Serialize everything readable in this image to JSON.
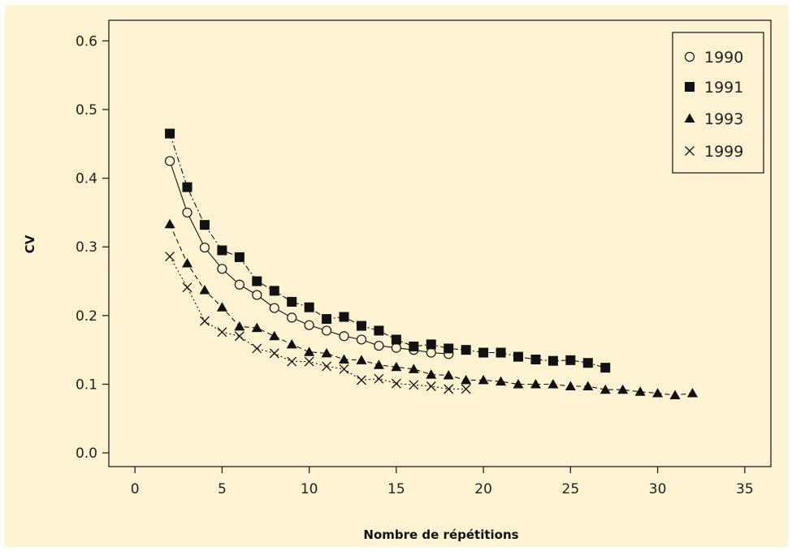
{
  "chart_data": {
    "type": "line",
    "xlabel": "Nombre de répétitions",
    "ylabel": "CV",
    "xlim": [
      -1.5,
      36.5
    ],
    "ylim": [
      -0.02,
      0.63
    ],
    "xticks": [
      0,
      5,
      10,
      15,
      20,
      25,
      30,
      35
    ],
    "yticks": [
      0.0,
      0.1,
      0.2,
      0.3,
      0.4,
      0.5,
      0.6
    ],
    "ytick_labels": [
      "0.0",
      "0.1",
      "0.2",
      "0.3",
      "0.4",
      "0.5",
      "0.6"
    ],
    "grid": false,
    "legend_position": "top-right",
    "series": [
      {
        "name": "1990",
        "marker": "open-circle",
        "line_style": "solid",
        "x": [
          2,
          3,
          4,
          5,
          6,
          7,
          8,
          9,
          10,
          11,
          12,
          13,
          14,
          15,
          16,
          17,
          18
        ],
        "y": [
          0.425,
          0.35,
          0.299,
          0.268,
          0.245,
          0.23,
          0.211,
          0.197,
          0.186,
          0.178,
          0.17,
          0.165,
          0.156,
          0.153,
          0.15,
          0.146,
          0.144
        ]
      },
      {
        "name": "1991",
        "marker": "filled-square",
        "line_style": "dash-dot",
        "x": [
          2,
          3,
          4,
          5,
          6,
          7,
          8,
          9,
          10,
          11,
          12,
          13,
          14,
          15,
          16,
          17,
          18,
          19,
          20,
          21,
          22,
          23,
          24,
          25,
          26,
          27
        ],
        "y": [
          0.465,
          0.387,
          0.332,
          0.295,
          0.285,
          0.25,
          0.236,
          0.22,
          0.212,
          0.195,
          0.198,
          0.185,
          0.178,
          0.165,
          0.155,
          0.158,
          0.152,
          0.15,
          0.146,
          0.146,
          0.14,
          0.136,
          0.134,
          0.135,
          0.131,
          0.124
        ]
      },
      {
        "name": "1993",
        "marker": "filled-triangle",
        "line_style": "dashed",
        "x": [
          2,
          3,
          4,
          5,
          6,
          7,
          8,
          9,
          10,
          11,
          12,
          13,
          14,
          15,
          16,
          17,
          18,
          19,
          20,
          21,
          22,
          23,
          24,
          25,
          26,
          27,
          28,
          29,
          30,
          31,
          32
        ],
        "y": [
          0.333,
          0.276,
          0.237,
          0.212,
          0.184,
          0.182,
          0.17,
          0.158,
          0.147,
          0.145,
          0.136,
          0.135,
          0.128,
          0.125,
          0.122,
          0.114,
          0.113,
          0.106,
          0.106,
          0.104,
          0.1,
          0.1,
          0.1,
          0.097,
          0.097,
          0.092,
          0.092,
          0.089,
          0.087,
          0.084,
          0.087
        ]
      },
      {
        "name": "1999",
        "marker": "cross",
        "line_style": "dotted",
        "x": [
          2,
          3,
          4,
          5,
          6,
          7,
          8,
          9,
          10,
          11,
          12,
          13,
          14,
          15,
          16,
          17,
          18,
          19
        ],
        "y": [
          0.286,
          0.241,
          0.192,
          0.176,
          0.17,
          0.152,
          0.145,
          0.133,
          0.133,
          0.126,
          0.122,
          0.106,
          0.108,
          0.101,
          0.099,
          0.097,
          0.093,
          0.093
        ]
      }
    ]
  }
}
